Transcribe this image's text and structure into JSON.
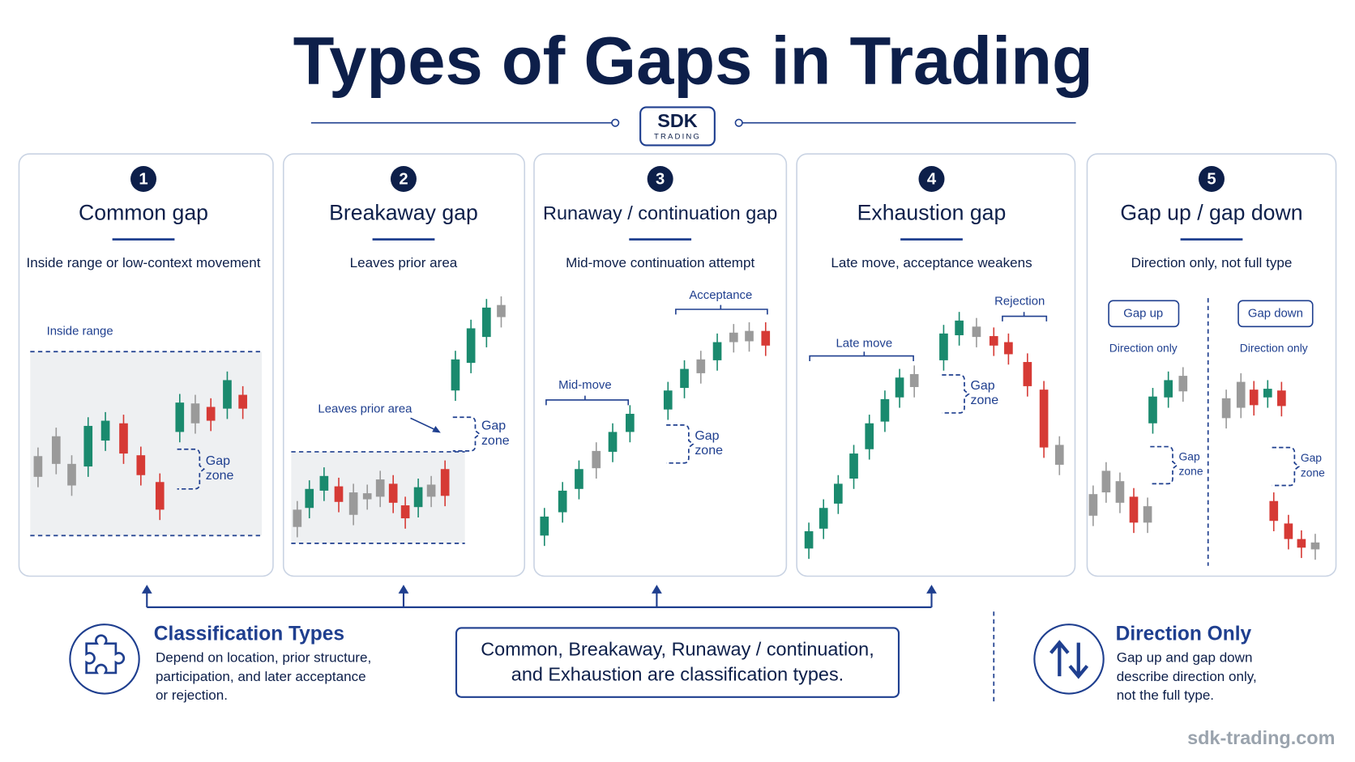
{
  "title": "Types of Gaps in Trading",
  "logo": {
    "name": "SDK",
    "sub": "TRADING"
  },
  "panels": [
    {
      "number": 1,
      "title": "Common gap",
      "subtitle": "Inside range or low-context movement",
      "annotations": [
        "Inside range"
      ],
      "gap_zone": [
        "Gap",
        "zone"
      ]
    },
    {
      "number": 2,
      "title": "Breakaway gap",
      "subtitle": "Leaves prior area",
      "annotations": [
        "Leaves prior area"
      ],
      "gap_zone": [
        "Gap",
        "zone"
      ]
    },
    {
      "number": 3,
      "title": "Runaway / continuation gap",
      "subtitle": "Mid-move continuation attempt",
      "annotations": [
        "Acceptance",
        "Mid-move"
      ],
      "gap_zone": [
        "Gap",
        "zone"
      ]
    },
    {
      "number": 4,
      "title": "Exhaustion gap",
      "subtitle": "Late move, acceptance weakens",
      "annotations": [
        "Rejection",
        "Late move"
      ],
      "gap_zone": [
        "Gap",
        "zone"
      ]
    },
    {
      "number": 5,
      "title": "Gap up / gap down",
      "subtitle": "Direction only, not full type",
      "annotations": [
        "Gap up",
        "Gap down",
        "Direction only",
        "Direction only"
      ],
      "gap_zone": [
        "Gap",
        "zone"
      ]
    }
  ],
  "summary": {
    "left": {
      "title": "Classification Types",
      "lines": [
        "Depend on location, prior structure,",
        "participation, and later acceptance",
        "or rejection."
      ]
    },
    "center": {
      "lines": [
        "Common, Breakaway, Runaway / continuation,",
        "and Exhaustion are classification types."
      ]
    },
    "right": {
      "title": "Direction Only",
      "lines": [
        "Gap up and gap down",
        "describe direction only,",
        "not the full type."
      ]
    }
  },
  "footer": "sdk-trading.com"
}
